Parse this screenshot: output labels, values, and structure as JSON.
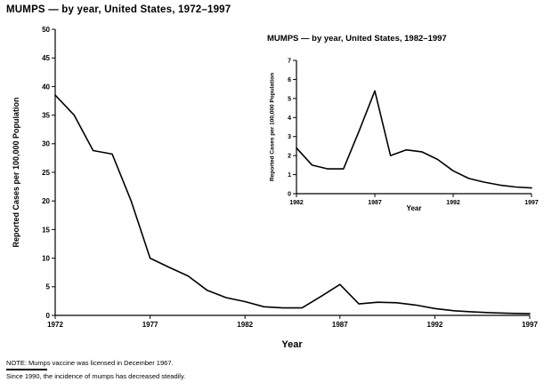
{
  "page": {
    "note1": "NOTE: Mumps vaccine was licensed in December 1967.",
    "note2": "Since 1990, the incidence of mumps has decreased steadily."
  },
  "chart_data": [
    {
      "type": "line",
      "title": "MUMPS — by year, United States, 1972–1997",
      "xlabel": "Year",
      "ylabel": "Reported Cases per 100,000 Population",
      "x": [
        1972,
        1973,
        1974,
        1975,
        1976,
        1977,
        1978,
        1979,
        1980,
        1981,
        1982,
        1983,
        1984,
        1985,
        1986,
        1987,
        1988,
        1989,
        1990,
        1991,
        1992,
        1993,
        1994,
        1995,
        1996,
        1997
      ],
      "values": [
        38.5,
        35.0,
        28.8,
        28.2,
        20.0,
        10.0,
        8.4,
        6.9,
        4.4,
        3.1,
        2.4,
        1.5,
        1.3,
        1.3,
        3.3,
        5.4,
        2.0,
        2.3,
        2.2,
        1.8,
        1.2,
        0.8,
        0.6,
        0.45,
        0.35,
        0.3
      ],
      "xlim": [
        1972,
        1997
      ],
      "ylim": [
        0,
        50
      ],
      "xticks": [
        1972,
        1977,
        1982,
        1987,
        1992,
        1997
      ],
      "yticks": [
        0,
        5,
        10,
        15,
        20,
        25,
        30,
        35,
        40,
        45,
        50
      ],
      "legend": "none",
      "grid": false,
      "line_color": "#000000"
    },
    {
      "type": "line",
      "title": "MUMPS — by year, United States, 1982–1997",
      "xlabel": "Year",
      "ylabel": "Reported Cases per 100,000 Population",
      "x": [
        1982,
        1983,
        1984,
        1985,
        1986,
        1987,
        1988,
        1989,
        1990,
        1991,
        1992,
        1993,
        1994,
        1995,
        1996,
        1997
      ],
      "values": [
        2.4,
        1.5,
        1.3,
        1.3,
        3.3,
        5.4,
        2.0,
        2.3,
        2.2,
        1.8,
        1.2,
        0.8,
        0.6,
        0.45,
        0.35,
        0.3
      ],
      "xlim": [
        1982,
        1997
      ],
      "ylim": [
        0,
        7
      ],
      "xticks": [
        1982,
        1987,
        1992,
        1997
      ],
      "yticks": [
        0,
        1,
        2,
        3,
        4,
        5,
        6,
        7
      ],
      "legend": "none",
      "grid": false,
      "line_color": "#000000"
    }
  ]
}
